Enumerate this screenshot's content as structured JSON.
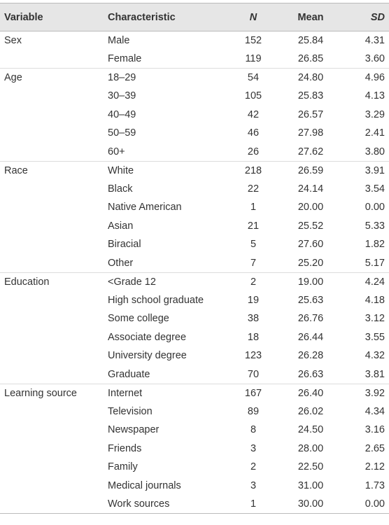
{
  "table": {
    "header": [
      "Variable",
      "Characteristic",
      "N",
      "Mean",
      "SD"
    ],
    "groups": [
      {
        "name": "Sex",
        "rows": [
          [
            "Male",
            "152",
            "25.84",
            "4.31"
          ],
          [
            "Female",
            "119",
            "26.85",
            "3.60"
          ]
        ]
      },
      {
        "name": "Age",
        "rows": [
          [
            "18–29",
            "54",
            "24.80",
            "4.96"
          ],
          [
            "30–39",
            "105",
            "25.83",
            "4.13"
          ],
          [
            "40–49",
            "42",
            "26.57",
            "3.29"
          ],
          [
            "50–59",
            "46",
            "27.98",
            "2.41"
          ],
          [
            "60+",
            "26",
            "27.62",
            "3.80"
          ]
        ]
      },
      {
        "name": "Race",
        "rows": [
          [
            "White",
            "218",
            "26.59",
            "3.91"
          ],
          [
            "Black",
            "22",
            "24.14",
            "3.54"
          ],
          [
            "Native American",
            "1",
            "20.00",
            "0.00"
          ],
          [
            "Asian",
            "21",
            "25.52",
            "5.33"
          ],
          [
            "Biracial",
            "5",
            "27.60",
            "1.82"
          ],
          [
            "Other",
            "7",
            "25.20",
            "5.17"
          ]
        ]
      },
      {
        "name": "Education",
        "rows": [
          [
            "<Grade 12",
            "2",
            "19.00",
            "4.24"
          ],
          [
            "High school graduate",
            "19",
            "25.63",
            "4.18"
          ],
          [
            "Some college",
            "38",
            "26.76",
            "3.12"
          ],
          [
            "Associate degree",
            "18",
            "26.44",
            "3.55"
          ],
          [
            "University degree",
            "123",
            "26.28",
            "4.32"
          ],
          [
            "Graduate",
            "70",
            "26.63",
            "3.81"
          ]
        ]
      },
      {
        "name": "Learning source",
        "rows": [
          [
            "Internet",
            "167",
            "26.40",
            "3.92"
          ],
          [
            "Television",
            "89",
            "26.02",
            "4.34"
          ],
          [
            "Newspaper",
            "8",
            "24.50",
            "3.16"
          ],
          [
            "Friends",
            "3",
            "28.00",
            "2.65"
          ],
          [
            "Family",
            "2",
            "22.50",
            "2.12"
          ],
          [
            "Medical journals",
            "3",
            "31.00",
            "1.73"
          ],
          [
            "Work sources",
            "1",
            "30.00",
            "0.00"
          ]
        ]
      }
    ]
  }
}
